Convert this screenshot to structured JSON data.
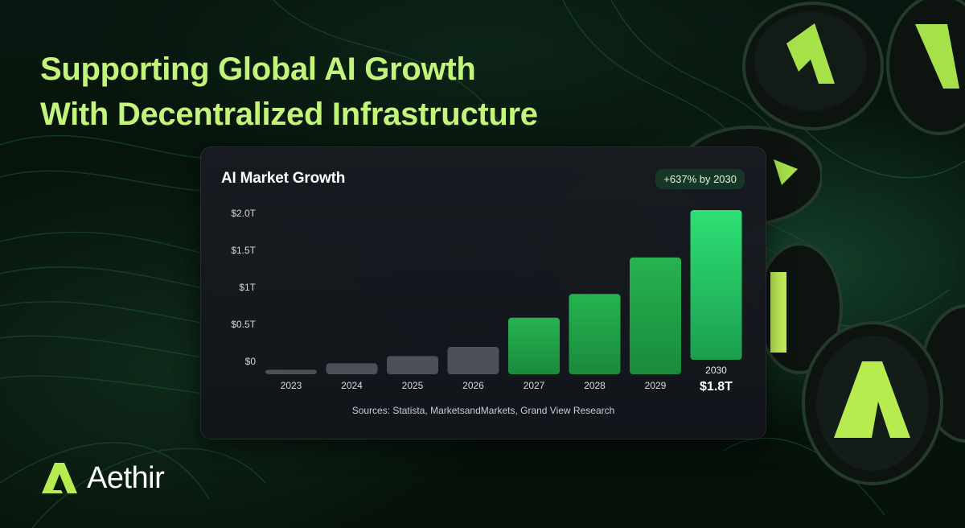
{
  "headline": {
    "line1": "Supporting Global AI Growth",
    "line2": "With Decentralized Infrastructure"
  },
  "card": {
    "title": "AI Market Growth",
    "badge": "+637% by 2030",
    "sources": "Sources: Statista, MarketsandMarkets, Grand View Research"
  },
  "brand": {
    "name": "Aethir",
    "logo_icon": "aethir-logo-icon"
  },
  "colors": {
    "headline": "#c3f57b",
    "bar_past": "#4a4f58",
    "bar_growth": "#1f9a45",
    "bar_highlight": "#2ee075",
    "card_bg": "#161a20",
    "badge_bg": "#173628"
  },
  "chart_data": {
    "type": "bar",
    "title": "AI Market Growth",
    "categories": [
      "2023",
      "2024",
      "2025",
      "2026",
      "2027",
      "2028",
      "2029",
      "2030"
    ],
    "tick_categories": [
      "2023",
      "2024",
      "2025",
      "2026",
      "2027",
      "2028",
      "2029",
      "2030"
    ],
    "values": [
      0.05,
      0.12,
      0.2,
      0.3,
      0.62,
      0.88,
      1.28,
      1.8
    ],
    "yticks": [
      "$0",
      "$0.5T",
      "$1T",
      "$1.5T",
      "$2.0T"
    ],
    "ylim": [
      0,
      1.8
    ],
    "highlight_label": "$1.8T",
    "xlabel": "",
    "ylabel": "",
    "grid": false,
    "legend": "none"
  }
}
